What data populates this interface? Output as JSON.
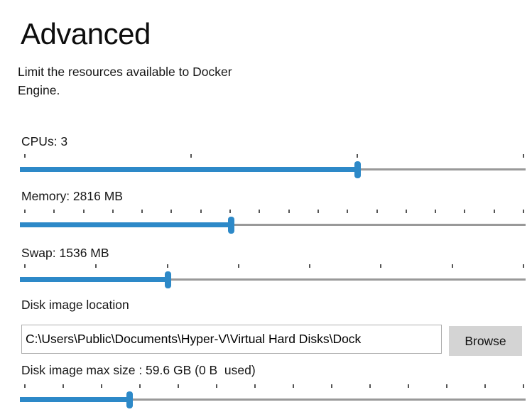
{
  "page": {
    "title": "Advanced",
    "description": "Limit the resources available to Docker Engine."
  },
  "colors": {
    "accent_blue": "#2d89c8",
    "track_gray": "#999999",
    "tick_gray": "#555555",
    "button_gray": "#d4d4d4"
  },
  "sliders": [
    {
      "id": "cpus",
      "label": "CPUs: 3",
      "tick_count": 4,
      "fraction": 0.667
    },
    {
      "id": "memory",
      "label": "Memory: 2816 MB",
      "tick_count": 18,
      "fraction": 0.4145
    },
    {
      "id": "swap",
      "label": "Swap: 1536 MB",
      "tick_count": 8,
      "fraction": 0.2877
    },
    {
      "id": "disk-size",
      "label": "Disk image max size : 59.6 GB (0 B  used)",
      "tick_count": 14,
      "fraction": 0.2108
    }
  ],
  "disk_location": {
    "label": "Disk image location",
    "value": "C:\\Users\\Public\\Documents\\Hyper-V\\Virtual Hard Disks\\Dock",
    "browse_label": "Browse"
  }
}
